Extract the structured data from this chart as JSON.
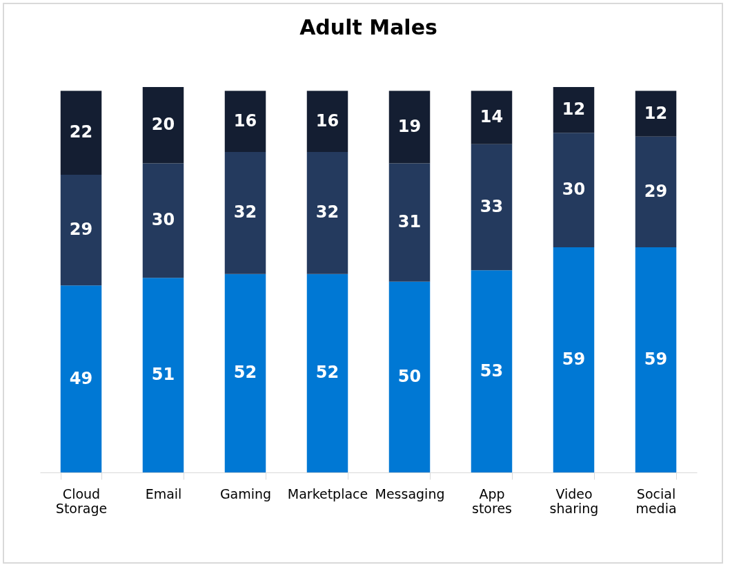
{
  "chart_data": {
    "type": "bar",
    "title": "Adult Males",
    "stacked": true,
    "data_labels": true,
    "categories": [
      "Cloud Storage",
      "Email",
      "Gaming",
      "Marketplace",
      "Messaging",
      "App stores",
      "Video sharing",
      "Social media"
    ],
    "series": [
      {
        "color": "#0078d4",
        "values": [
          49,
          51,
          52,
          52,
          50,
          53,
          59,
          59
        ]
      },
      {
        "color": "#243a5e",
        "values": [
          29,
          30,
          32,
          32,
          31,
          33,
          30,
          29
        ]
      },
      {
        "color": "#141e32",
        "values": [
          22,
          20,
          16,
          16,
          19,
          14,
          12,
          12
        ]
      }
    ]
  }
}
